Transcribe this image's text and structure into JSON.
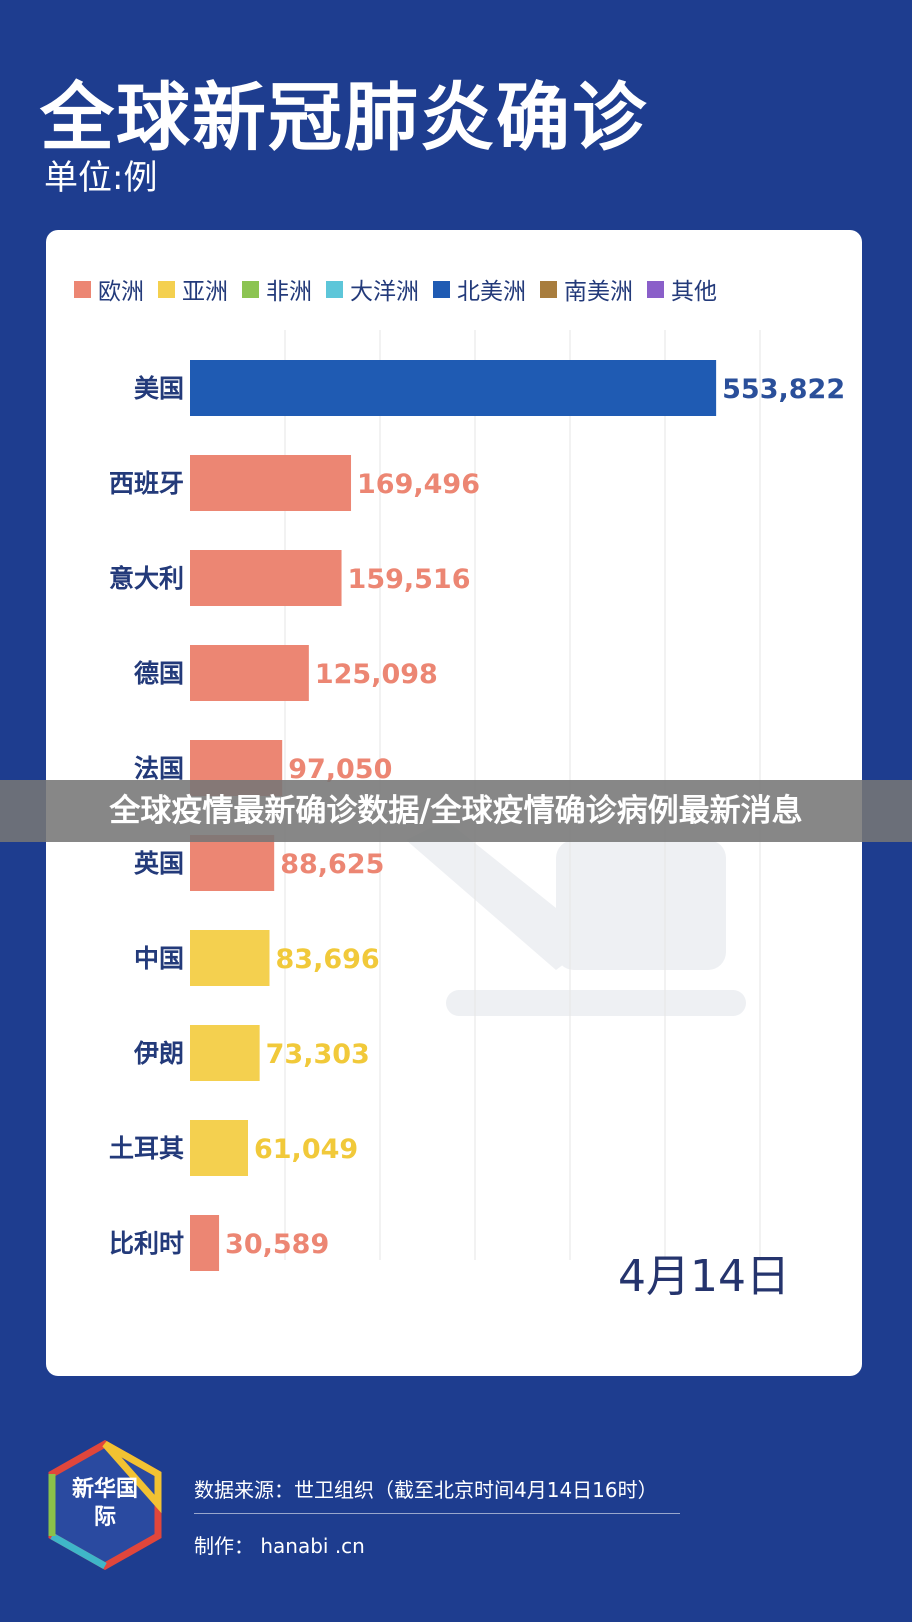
{
  "header": {
    "title": "全球新冠肺炎确诊",
    "unit": "单位:例"
  },
  "chart_data": {
    "type": "bar",
    "orientation": "horizontal",
    "legend": [
      {
        "name": "欧洲",
        "color": "#ec8673"
      },
      {
        "name": "亚洲",
        "color": "#f4d04f"
      },
      {
        "name": "非洲",
        "color": "#8cc452"
      },
      {
        "name": "大洋洲",
        "color": "#5dc6d9"
      },
      {
        "name": "北美洲",
        "color": "#1f5bb3"
      },
      {
        "name": "南美洲",
        "color": "#a87d3e"
      },
      {
        "name": "其他",
        "color": "#8a5fc9"
      }
    ],
    "categories": [
      "美国",
      "西班牙",
      "意大利",
      "德国",
      "法国",
      "英国",
      "中国",
      "伊朗",
      "土耳其",
      "比利时"
    ],
    "values": [
      553822,
      169496,
      159516,
      125098,
      97050,
      88625,
      83696,
      73303,
      61049,
      30589
    ],
    "labels": [
      "553,822",
      "169,496",
      "159,516",
      "125,098",
      "97,050",
      "88,625",
      "83,696",
      "73,303",
      "61,049",
      "30,589"
    ],
    "regions": [
      "北美洲",
      "欧洲",
      "欧洲",
      "欧洲",
      "欧洲",
      "欧洲",
      "亚洲",
      "亚洲",
      "亚洲",
      "欧洲"
    ],
    "label_colors": {
      "北美洲": "#2a4f9a",
      "欧洲": "#ec8673",
      "亚洲": "#f1c93a"
    },
    "xlim": [
      0,
      600000
    ],
    "grid": true,
    "date": "4月14日"
  },
  "overlay": {
    "banner_text": "全球疫情最新确诊数据/全球疫情确诊病例最新消息"
  },
  "footer": {
    "logo_text": "新华国际",
    "source": "数据来源：世卫组织（截至北京时间4月14日16时）",
    "credit": "制作：  hanabi .cn"
  }
}
